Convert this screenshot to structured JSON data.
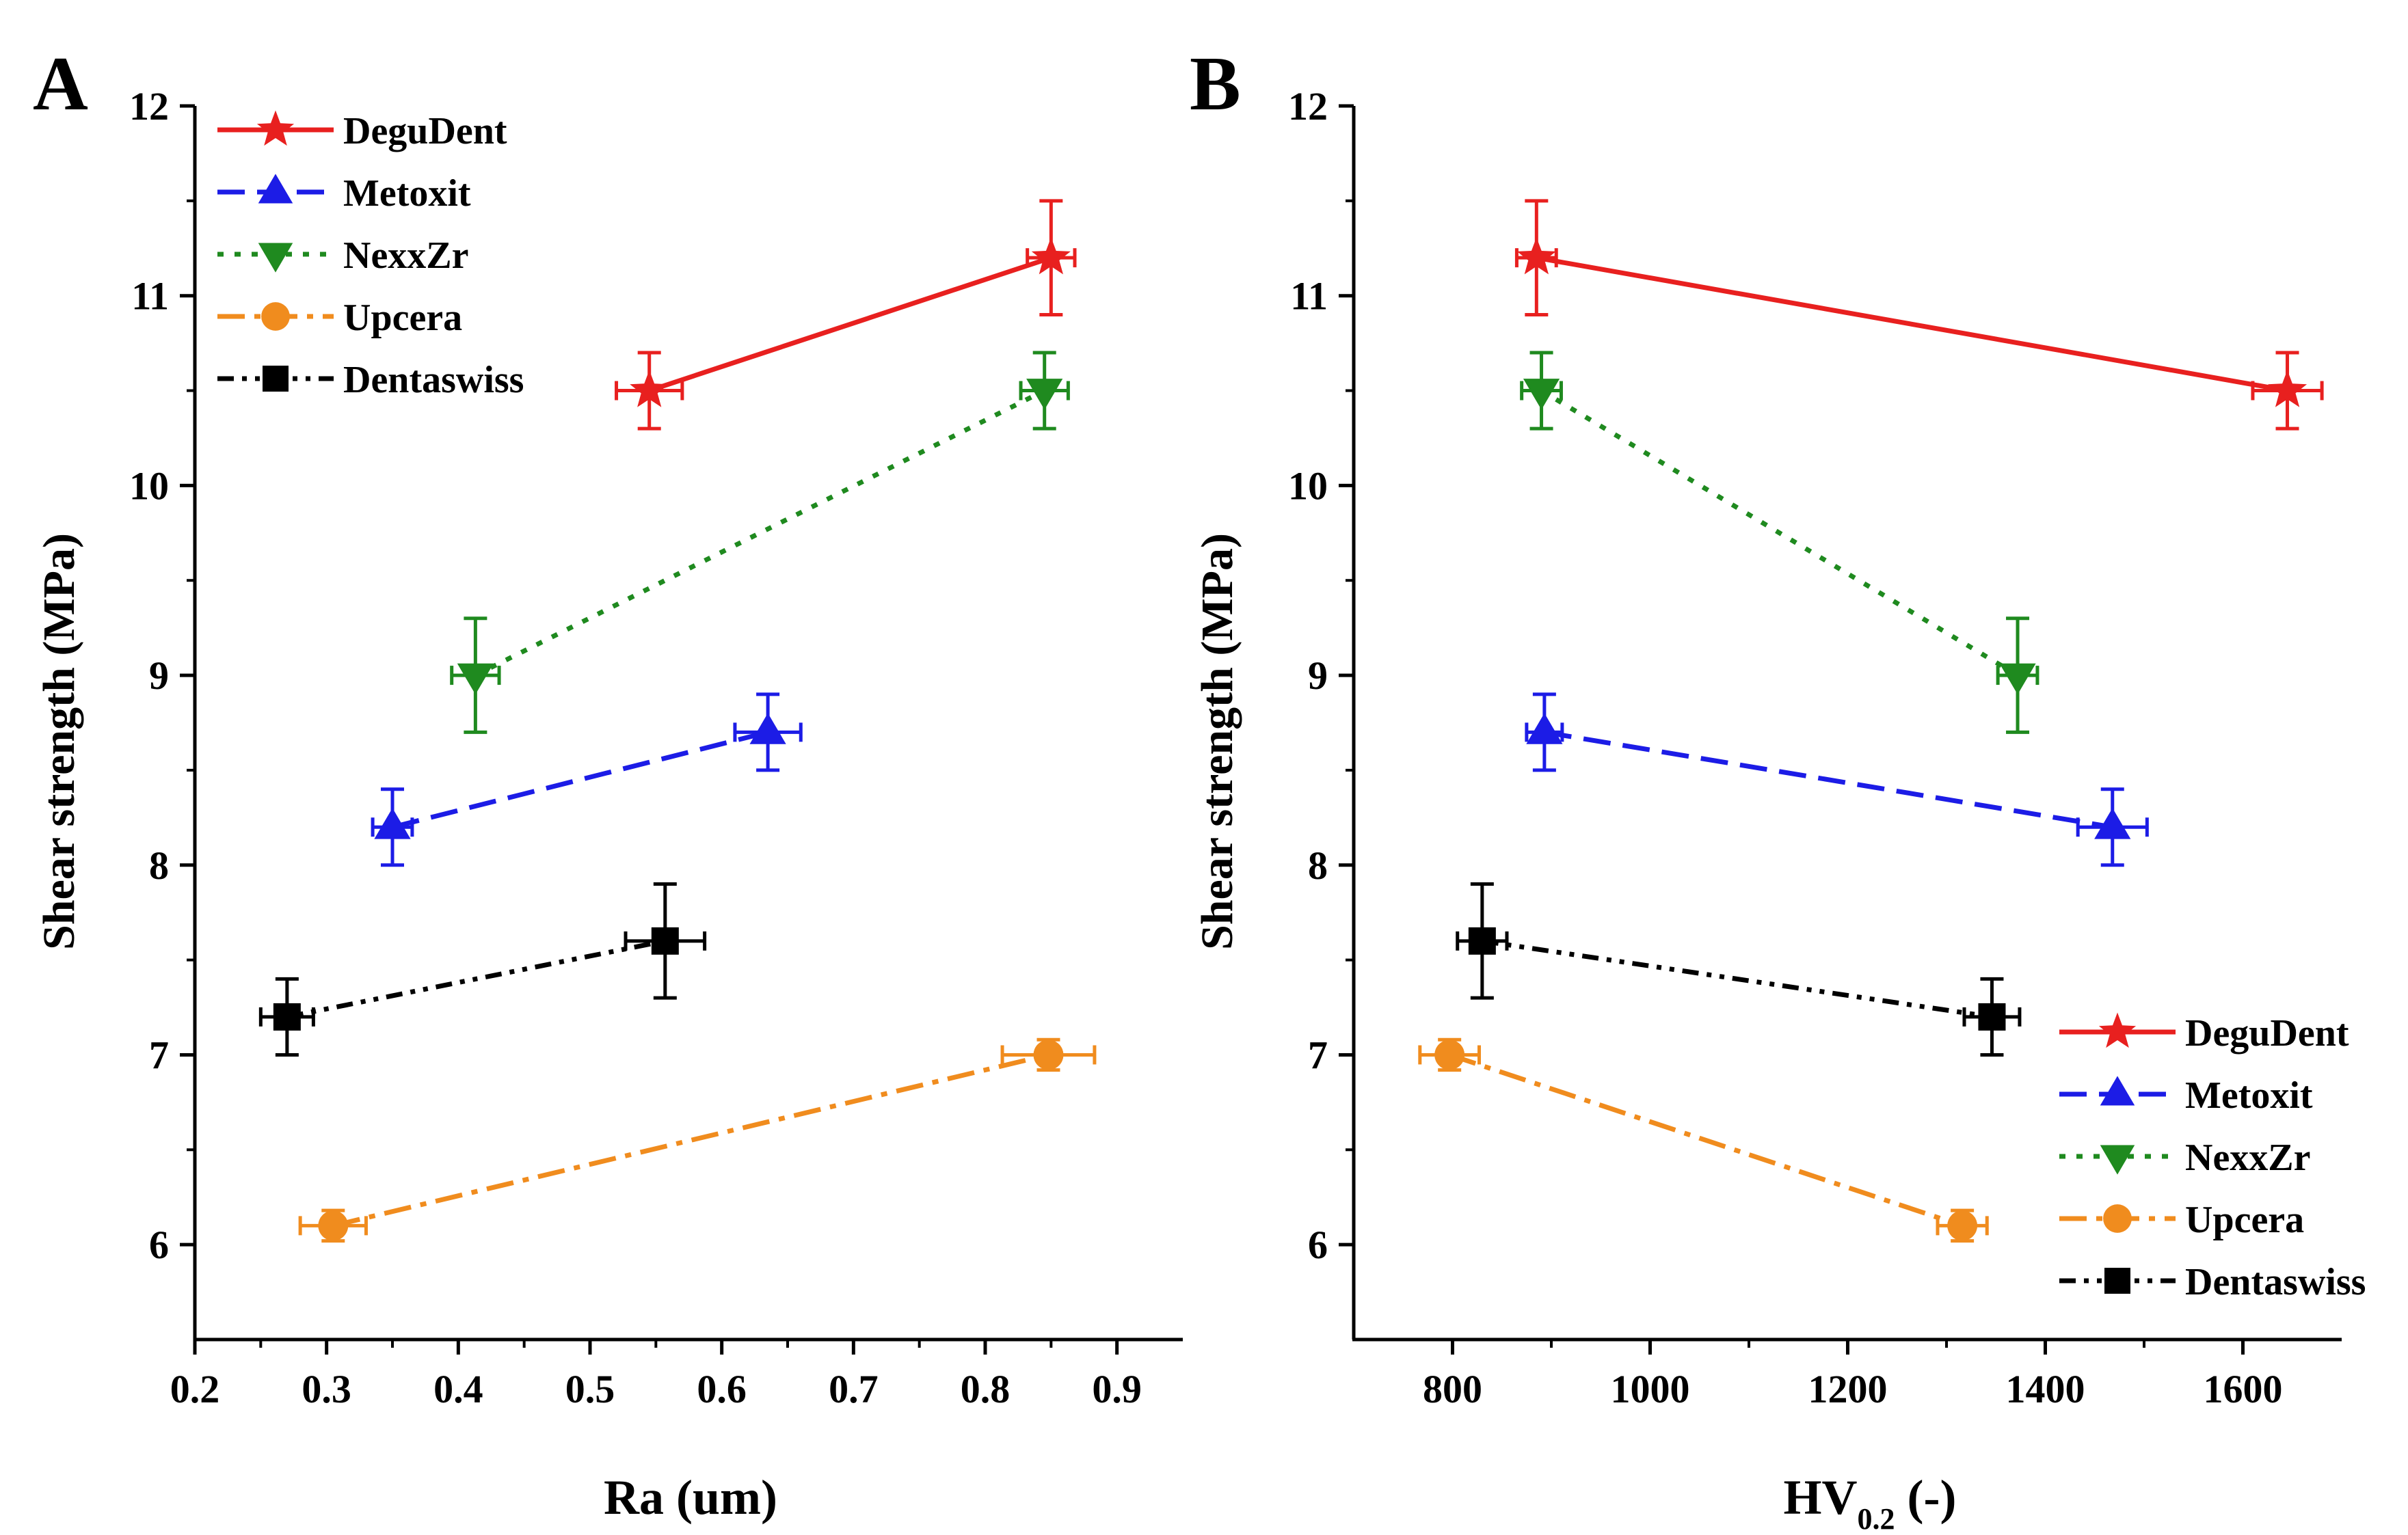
{
  "chart_data": [
    {
      "type": "scatter",
      "panel_label": "A",
      "title": "",
      "xlabel": "Ra (um)",
      "ylabel": "Shear strength (MPa)",
      "xlim": [
        0.2,
        0.95
      ],
      "ylim": [
        5.5,
        12
      ],
      "xticks": [
        0.2,
        0.3,
        0.4,
        0.5,
        0.6,
        0.7,
        0.8,
        0.9
      ],
      "xtick_labels": [
        "0.2",
        "0.3",
        "0.4",
        "0.5",
        "0.6",
        "0.7",
        "0.8",
        "0.9"
      ],
      "yticks": [
        6,
        7,
        8,
        9,
        10,
        11,
        12
      ],
      "ytick_labels": [
        "6",
        "7",
        "8",
        "9",
        "10",
        "11",
        "12"
      ],
      "legend_position": "top-left",
      "grid": false,
      "series": [
        {
          "name": "DeguDent",
          "color": "#e8201f",
          "marker": "star",
          "dash": "solid",
          "x": [
            0.545,
            0.85
          ],
          "y": [
            10.5,
            11.2
          ],
          "xerr": [
            0.025,
            0.018
          ],
          "yerr": [
            0.2,
            0.3
          ]
        },
        {
          "name": "Metoxit",
          "color": "#1c1ce6",
          "marker": "triangle-up",
          "dash": "dash",
          "x": [
            0.35,
            0.635
          ],
          "y": [
            8.2,
            8.7
          ],
          "xerr": [
            0.015,
            0.025
          ],
          "yerr": [
            0.2,
            0.2
          ]
        },
        {
          "name": "NexxZr",
          "color": "#1f8a1f",
          "marker": "triangle-down",
          "dash": "dot",
          "x": [
            0.413,
            0.845
          ],
          "y": [
            9.0,
            10.5
          ],
          "xerr": [
            0.018,
            0.018
          ],
          "yerr": [
            0.3,
            0.2
          ]
        },
        {
          "name": "Upcera",
          "color": "#f08c1e",
          "marker": "circle",
          "dash": "dashdot",
          "x": [
            0.305,
            0.848
          ],
          "y": [
            6.1,
            7.0
          ],
          "xerr": [
            0.025,
            0.035
          ],
          "yerr": [
            0.08,
            0.08
          ]
        },
        {
          "name": "Dentaswiss",
          "color": "#000000",
          "marker": "square",
          "dash": "dashdotdot",
          "x": [
            0.27,
            0.557
          ],
          "y": [
            7.2,
            7.6
          ],
          "xerr": [
            0.02,
            0.03
          ],
          "yerr": [
            0.2,
            0.3
          ]
        }
      ]
    },
    {
      "type": "scatter",
      "panel_label": "B",
      "title": "",
      "xlabel": "HV",
      "xlabel_sub": "0.2",
      "xlabel_suffix": " (-)",
      "ylabel": "Shear strength (MPa)",
      "xlim": [
        700,
        1700
      ],
      "ylim": [
        5.5,
        12
      ],
      "xticks": [
        800,
        1000,
        1200,
        1400,
        1600
      ],
      "xtick_labels": [
        "800",
        "1000",
        "1200",
        "1400",
        "1600"
      ],
      "yticks": [
        6,
        7,
        8,
        9,
        10,
        11,
        12
      ],
      "ytick_labels": [
        "6",
        "7",
        "8",
        "9",
        "10",
        "11",
        "12"
      ],
      "legend_position": "bottom-right",
      "grid": false,
      "series": [
        {
          "name": "DeguDent",
          "color": "#e8201f",
          "marker": "star",
          "dash": "solid",
          "x": [
            885,
            1645
          ],
          "y": [
            11.2,
            10.5
          ],
          "xerr": [
            20,
            35
          ],
          "yerr": [
            0.3,
            0.2
          ]
        },
        {
          "name": "Metoxit",
          "color": "#1c1ce6",
          "marker": "triangle-up",
          "dash": "dash",
          "x": [
            893,
            1468
          ],
          "y": [
            8.7,
            8.2
          ],
          "xerr": [
            18,
            35
          ],
          "yerr": [
            0.2,
            0.2
          ]
        },
        {
          "name": "NexxZr",
          "color": "#1f8a1f",
          "marker": "triangle-down",
          "dash": "dot",
          "x": [
            890,
            1372
          ],
          "y": [
            10.5,
            9.0
          ],
          "xerr": [
            20,
            20
          ],
          "yerr": [
            0.2,
            0.3
          ]
        },
        {
          "name": "Upcera",
          "color": "#f08c1e",
          "marker": "circle",
          "dash": "dashdot",
          "x": [
            797,
            1316
          ],
          "y": [
            7.0,
            6.1
          ],
          "xerr": [
            30,
            25
          ],
          "yerr": [
            0.08,
            0.08
          ]
        },
        {
          "name": "Dentaswiss",
          "color": "#000000",
          "marker": "square",
          "dash": "dashdotdot",
          "x": [
            830,
            1346
          ],
          "y": [
            7.6,
            7.2
          ],
          "xerr": [
            25,
            28
          ],
          "yerr": [
            0.3,
            0.2
          ]
        }
      ]
    }
  ]
}
